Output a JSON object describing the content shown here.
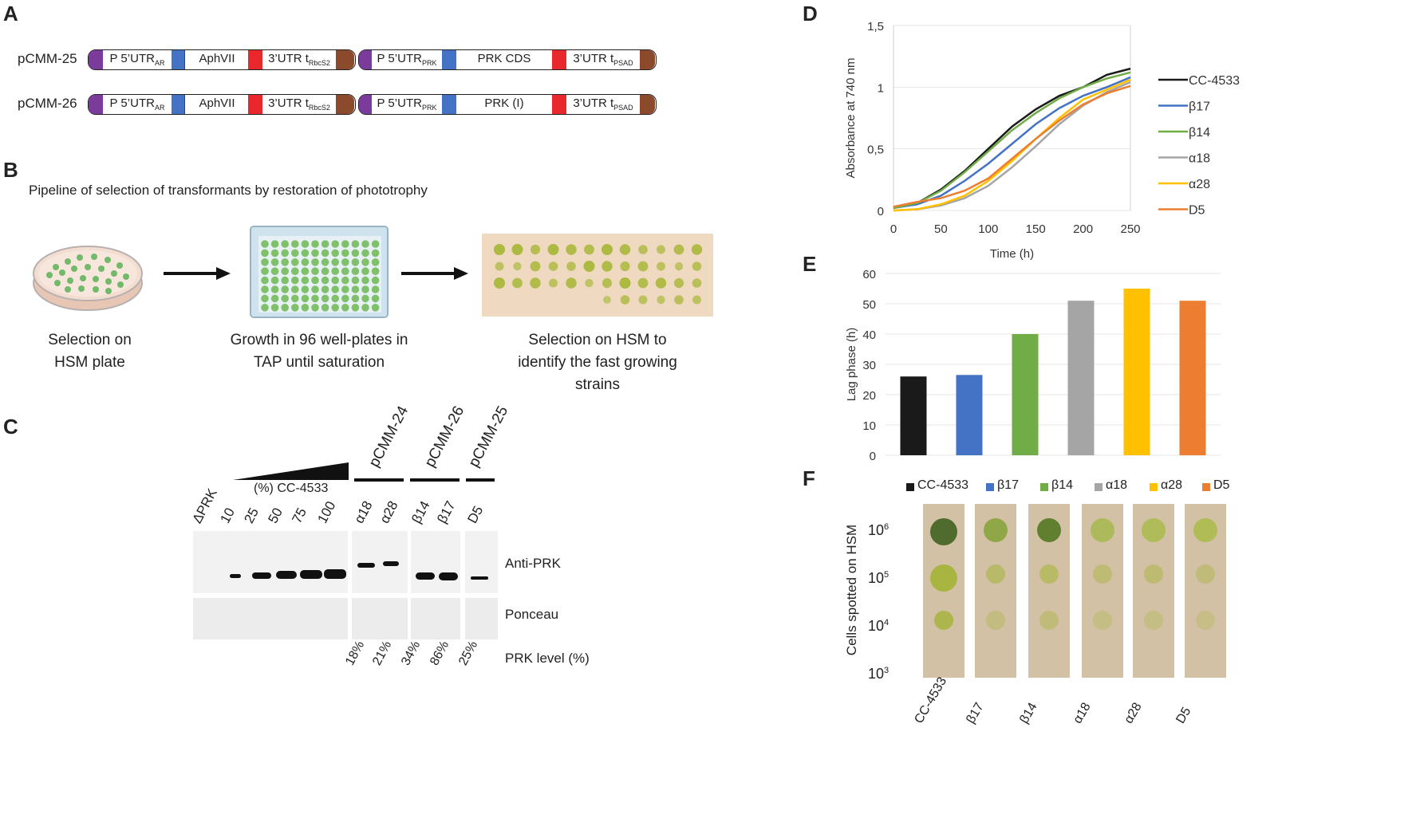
{
  "panel_letters": {
    "a": "A",
    "b": "B",
    "c": "C",
    "d": "D",
    "e": "E",
    "f": "F"
  },
  "panelA": {
    "constructs": [
      {
        "name": "pCMM-25",
        "p": "P 5’UTR",
        "p_sub": "AR",
        "aph": "AphVII",
        "u1": "3’UTR t",
        "u1_sub": "RbcS2",
        "p2": "P 5’UTR",
        "p2_sub": "PRK",
        "cds": "PRK CDS",
        "u2": "3’UTR t",
        "u2_sub": "PSAD"
      },
      {
        "name": "pCMM-26",
        "p": "P 5’UTR",
        "p_sub": "AR",
        "aph": "AphVII",
        "u1": "3’UTR t",
        "u1_sub": "RbcS2",
        "p2": "P 5’UTR",
        "p2_sub": "PRK",
        "cds": "PRK (I)",
        "u2": "3’UTR t",
        "u2_sub": "PSAD"
      }
    ],
    "colors": {
      "purple": "#7a3b9a",
      "blue": "#4472c4",
      "red": "#e8282c",
      "brown": "#8b4a2b"
    }
  },
  "panelB": {
    "title": "Pipeline of selection of transformants by restoration of phototrophy",
    "step1": "Selection on HSM plate",
    "step2": "Growth in 96 well-plates in TAP until saturation",
    "step3": "Selection on HSM to identify the fast growing strains"
  },
  "panelC": {
    "group_labels": [
      "pCMM-24",
      "pCMM-26",
      "pCMM-25"
    ],
    "gradient_label": "(%) CC-4533",
    "lanes": [
      "ΔPRK",
      "10",
      "25",
      "50",
      "75",
      "100",
      "α18",
      "α28",
      "β14",
      "β17",
      "D5"
    ],
    "row_labels": [
      "Anti-PRK",
      "Ponceau"
    ],
    "prk_levels": [
      "18%",
      "21%",
      "34%",
      "86%",
      "25%"
    ],
    "prk_level_label": "PRK level (%)"
  },
  "legend_labels": [
    "CC-4533",
    "β17",
    "β14",
    "α18",
    "α28",
    "D5"
  ],
  "strain_colors": [
    "#1a1a1a",
    "#4472c4",
    "#70ad47",
    "#a5a5a5",
    "#ffc000",
    "#ed7d31"
  ],
  "chart_data": [
    {
      "panel": "D",
      "type": "line",
      "title": "",
      "xlabel": "Time (h)",
      "ylabel": "Absorbance at 740 nm",
      "xlim": [
        0,
        250
      ],
      "ylim": [
        0,
        1.5
      ],
      "x_ticks": [
        "0",
        "50",
        "100",
        "150",
        "200",
        "250"
      ],
      "y_ticks": [
        "0",
        "0,5",
        "1",
        "1,5"
      ],
      "x": [
        0,
        25,
        50,
        75,
        100,
        125,
        150,
        175,
        200,
        225,
        250
      ],
      "series": [
        {
          "name": "CC-4533",
          "values": [
            0.02,
            0.06,
            0.17,
            0.32,
            0.5,
            0.68,
            0.82,
            0.93,
            1.0,
            1.1,
            1.15
          ]
        },
        {
          "name": "β17",
          "values": [
            0.02,
            0.05,
            0.12,
            0.24,
            0.38,
            0.54,
            0.7,
            0.83,
            0.93,
            1.0,
            1.08
          ]
        },
        {
          "name": "β14",
          "values": [
            0.02,
            0.06,
            0.16,
            0.31,
            0.48,
            0.65,
            0.79,
            0.91,
            1.0,
            1.07,
            1.12
          ]
        },
        {
          "name": "α18",
          "values": [
            0.0,
            0.01,
            0.04,
            0.1,
            0.2,
            0.35,
            0.52,
            0.7,
            0.85,
            0.96,
            1.04
          ]
        },
        {
          "name": "α28",
          "values": [
            0.0,
            0.01,
            0.05,
            0.12,
            0.24,
            0.4,
            0.58,
            0.75,
            0.9,
            0.98,
            1.06
          ]
        },
        {
          "name": "D5",
          "values": [
            0.03,
            0.07,
            0.1,
            0.16,
            0.26,
            0.42,
            0.58,
            0.73,
            0.86,
            0.95,
            1.01
          ]
        }
      ]
    },
    {
      "panel": "E",
      "type": "bar",
      "title": "",
      "xlabel": "",
      "ylabel": "Lag phase (h)",
      "ylim": [
        0,
        60
      ],
      "y_ticks": [
        "0",
        "10",
        "20",
        "30",
        "40",
        "50",
        "60"
      ],
      "categories": [
        "CC-4533",
        "β17",
        "β14",
        "α18",
        "α28",
        "D5"
      ],
      "values": [
        26,
        26.5,
        40,
        51,
        55,
        51
      ]
    }
  ],
  "panelF": {
    "ylabel": "Cells spotted on HSM",
    "y_ticks": [
      {
        "b": "10",
        "e": "6"
      },
      {
        "b": "10",
        "e": "5"
      },
      {
        "b": "10",
        "e": "4"
      },
      {
        "b": "10",
        "e": "3"
      }
    ],
    "strains": [
      "CC-4533",
      "β17",
      "β14",
      "α18",
      "α28",
      "D5"
    ]
  }
}
